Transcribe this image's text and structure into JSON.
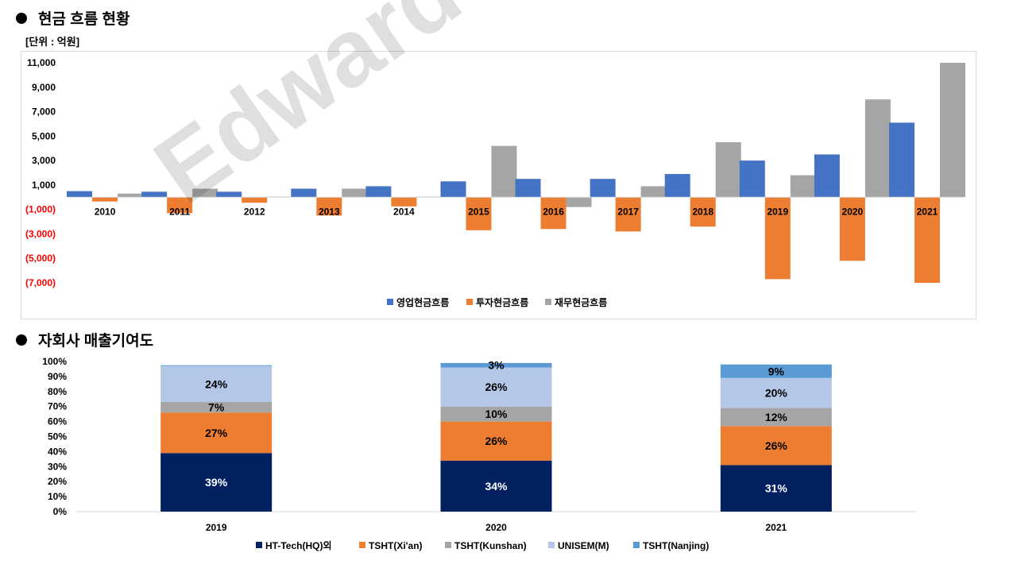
{
  "watermark": "Edward Choi",
  "section1": {
    "title": "현금 흐름 현황",
    "unit": "[단위 : 억원]"
  },
  "section2": {
    "title": "자회사 매출기여도"
  },
  "chart_data": [
    {
      "type": "bar",
      "title": "현금 흐름 현황",
      "ylabel": "[단위 : 억원]",
      "categories": [
        "2010",
        "2011",
        "2012",
        "2013",
        "2014",
        "2015",
        "2016",
        "2017",
        "2018",
        "2019",
        "2020",
        "2021"
      ],
      "series": [
        {
          "name": "영업현금흐름",
          "color": "#4472C4",
          "values": [
            500,
            450,
            450,
            700,
            900,
            1300,
            1500,
            1500,
            1900,
            3000,
            3500,
            6100
          ]
        },
        {
          "name": "투자현금흐름",
          "color": "#ED7D31",
          "values": [
            -350,
            -1300,
            -450,
            -1500,
            -750,
            -2700,
            -2600,
            -2800,
            -2400,
            -6700,
            -5200,
            -7000
          ]
        },
        {
          "name": "재무현금흐름",
          "color": "#A5A5A5",
          "values": [
            300,
            700,
            50,
            700,
            50,
            4200,
            -800,
            900,
            4500,
            1800,
            8000,
            11000
          ]
        }
      ],
      "ylim": [
        -7000,
        11000
      ],
      "yticks": [
        11000,
        9000,
        7000,
        5000,
        3000,
        1000,
        -1000,
        -3000,
        -5000,
        -7000
      ],
      "ytick_labels": [
        "11,000",
        "9,000",
        "7,000",
        "5,000",
        "3,000",
        "1,000",
        "(1,000)",
        "(3,000)",
        "(5,000)",
        "(7,000)"
      ],
      "negative_tick_color": "#FF0000",
      "legend_position": "bottom"
    },
    {
      "type": "bar",
      "stacked": true,
      "percent": true,
      "title": "자회사 매출기여도",
      "categories": [
        "2019",
        "2020",
        "2021"
      ],
      "series": [
        {
          "name": "HT-Tech(HQ)외",
          "color": "#002060",
          "values": [
            39,
            34,
            31
          ],
          "labels": [
            "39%",
            "34%",
            "31%"
          ],
          "label_color": "#ffffff"
        },
        {
          "name": "TSHT(Xi'an)",
          "color": "#ED7D31",
          "values": [
            27,
            26,
            26
          ],
          "labels": [
            "27%",
            "26%",
            "26%"
          ],
          "label_color": "#000000"
        },
        {
          "name": "TSHT(Kunshan)",
          "color": "#A5A5A5",
          "values": [
            7,
            10,
            12
          ],
          "labels": [
            "7%",
            "10%",
            "12%"
          ],
          "label_color": "#000000"
        },
        {
          "name": "UNISEM(M)",
          "color": "#B4C7E7",
          "values": [
            24,
            26,
            20
          ],
          "labels": [
            "24%",
            "26%",
            "20%"
          ],
          "label_color": "#000000"
        },
        {
          "name": "TSHT(Nanjing)",
          "color": "#5B9BD5",
          "values": [
            0.5,
            3,
            9
          ],
          "labels": [
            "",
            "3%",
            "9%"
          ],
          "label_color": "#000000"
        }
      ],
      "ylim": [
        0,
        100
      ],
      "ytick_labels": [
        "0%",
        "10%",
        "20%",
        "30%",
        "40%",
        "50%",
        "60%",
        "70%",
        "80%",
        "90%",
        "100%"
      ],
      "legend_position": "bottom"
    }
  ]
}
